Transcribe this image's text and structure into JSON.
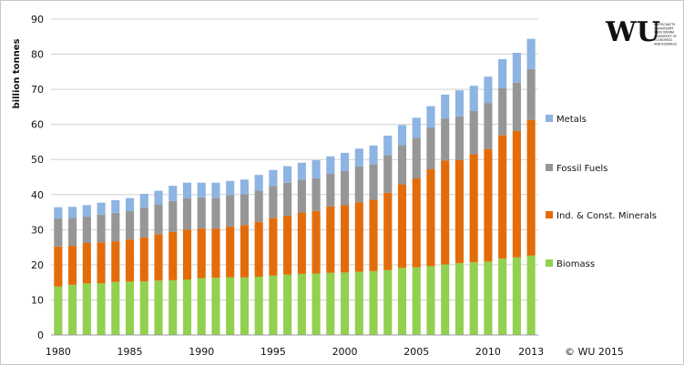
{
  "chart_data": {
    "type": "bar",
    "stacked": true,
    "ylabel": "billion tonnes",
    "ylim": [
      0,
      90
    ],
    "yticks": [
      0,
      10,
      20,
      30,
      40,
      50,
      60,
      70,
      80,
      90
    ],
    "grid": true,
    "x": [
      1980,
      1981,
      1982,
      1983,
      1984,
      1985,
      1986,
      1987,
      1988,
      1989,
      1990,
      1991,
      1992,
      1993,
      1994,
      1995,
      1996,
      1997,
      1998,
      1999,
      2000,
      2001,
      2002,
      2003,
      2004,
      2005,
      2006,
      2007,
      2008,
      2009,
      2010,
      2011,
      2012,
      2013
    ],
    "xtick_labels": [
      "1980",
      "1985",
      "1990",
      "1995",
      "2000",
      "2005",
      "2010",
      "2013"
    ],
    "series": [
      {
        "name": "Biomass",
        "color": "#92d050",
        "values": [
          13.8,
          14.3,
          14.7,
          14.7,
          15.1,
          15.2,
          15.3,
          15.5,
          15.6,
          15.8,
          16.2,
          16.3,
          16.4,
          16.4,
          16.6,
          16.9,
          17.2,
          17.4,
          17.5,
          17.7,
          17.8,
          18.0,
          18.2,
          18.5,
          19.1,
          19.3,
          19.6,
          20.1,
          20.5,
          20.7,
          20.9,
          21.8,
          22.1,
          22.6
        ]
      },
      {
        "name": "Ind. & Const. Minerals",
        "color": "#e36c0a",
        "values": [
          11.4,
          11.1,
          11.5,
          11.7,
          11.6,
          12.0,
          12.5,
          13.2,
          13.8,
          14.2,
          14.1,
          14.0,
          14.5,
          14.9,
          15.6,
          16.4,
          16.8,
          17.5,
          17.8,
          18.9,
          19.2,
          19.8,
          20.3,
          22.0,
          23.8,
          25.3,
          27.6,
          29.6,
          29.4,
          30.8,
          32.1,
          35.1,
          36.0,
          38.7
        ]
      },
      {
        "name": "Fossil Fuels",
        "color": "#969696",
        "values": [
          8.0,
          8.0,
          7.5,
          7.9,
          8.1,
          8.1,
          8.6,
          8.5,
          8.8,
          9.0,
          8.9,
          8.8,
          8.9,
          8.8,
          8.9,
          9.1,
          9.4,
          9.3,
          9.3,
          9.3,
          9.7,
          10.2,
          10.1,
          10.7,
          11.2,
          11.6,
          11.8,
          12.0,
          12.4,
          12.3,
          13.1,
          13.4,
          13.8,
          14.5
        ]
      },
      {
        "name": "Metals",
        "color": "#8db4e2",
        "values": [
          3.2,
          3.1,
          3.3,
          3.4,
          3.6,
          3.7,
          3.8,
          3.9,
          4.3,
          4.4,
          4.2,
          4.3,
          4.1,
          4.2,
          4.5,
          4.6,
          4.7,
          4.9,
          5.2,
          5.0,
          5.2,
          5.1,
          5.4,
          5.6,
          5.7,
          5.7,
          6.2,
          6.8,
          7.4,
          7.2,
          7.5,
          8.3,
          8.5,
          8.6
        ]
      }
    ],
    "legend": [
      "Metals",
      "Fossil Fuels",
      "Ind. & Const. Minerals",
      "Biomass"
    ],
    "legend_position": "right"
  },
  "copyright": "© WU 2015",
  "logo": {
    "mark": "WU",
    "lines": [
      "WIRTSCHAFTS",
      "UNIVERSITÄT",
      "WIEN VIENNA",
      "UNIVERSITY OF",
      "ECONOMICS",
      "AND BUSINESS"
    ]
  }
}
